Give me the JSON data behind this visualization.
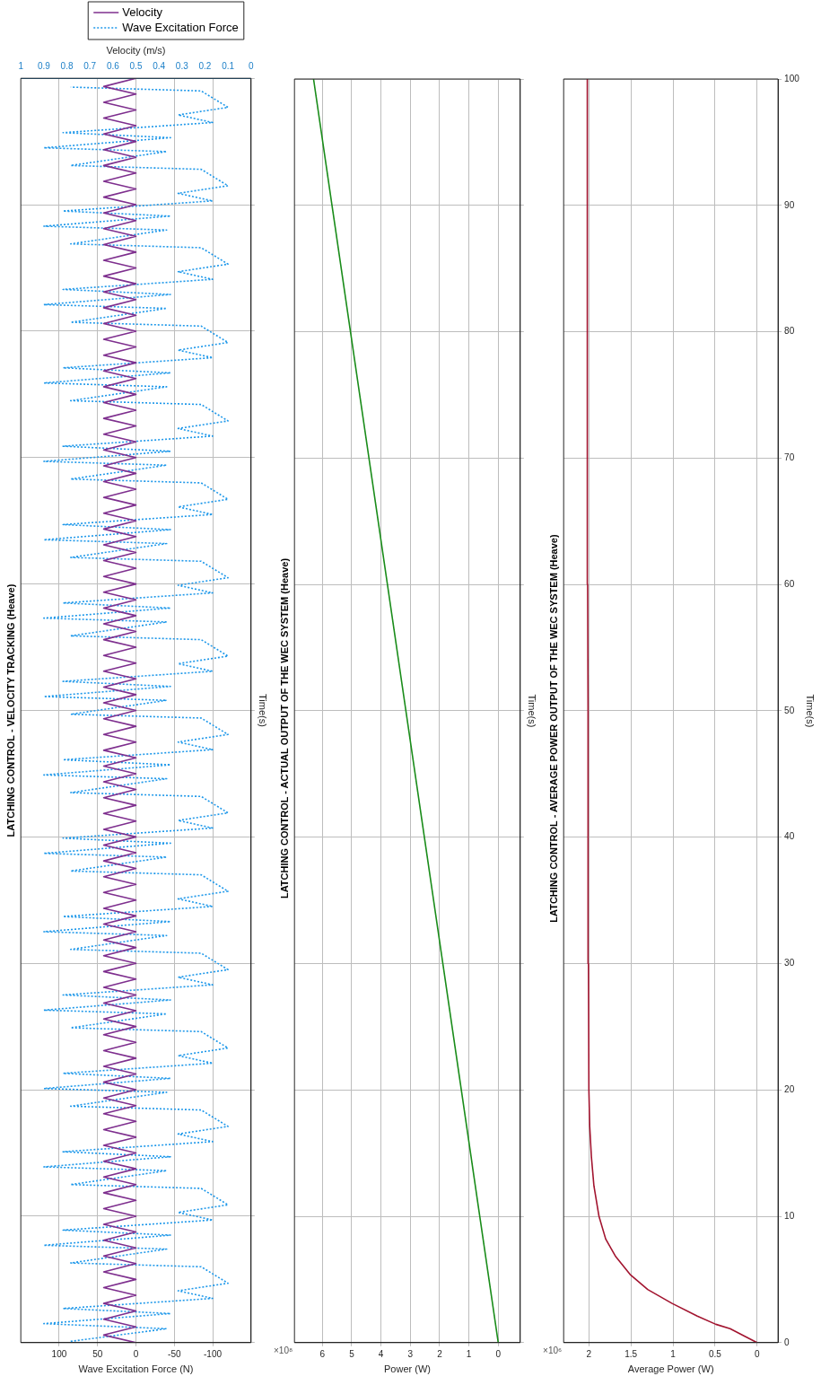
{
  "chart_data": [
    {
      "type": "line",
      "title": "LATCHING CONTROL - VELOCITY TRACKING (Heave)",
      "xlabel": "Wave Excitation Force (N)",
      "x2label": "Velocity (m/s)",
      "ylabel": "Time(s)",
      "ylim": [
        0,
        100
      ],
      "yticks": [
        0,
        10,
        20,
        30,
        40,
        50,
        60,
        70,
        80,
        90,
        100
      ],
      "xlim": [
        150,
        -150
      ],
      "xticks": [
        100,
        50,
        0,
        -50,
        -100
      ],
      "x2lim": [
        1,
        0
      ],
      "x2ticks": [
        1,
        0.9,
        0.8,
        0.7,
        0.6,
        0.5,
        0.4,
        0.3,
        0.2,
        0.1,
        0
      ],
      "grid": true,
      "legend": "top right",
      "tick_labels": "x",
      "marker": "none",
      "series": [
        {
          "name": "Velocity",
          "color": "#7e2f8e",
          "axis": "x2",
          "line_style": "solid",
          "values": [
            0,
            0.6,
            1.25,
            1.85,
            2.5,
            3.1,
            3.75,
            4.35,
            5,
            5.6,
            6.25,
            6.85,
            7.5,
            8.1,
            8.75,
            9.35,
            10,
            10.6,
            11.25,
            11.85,
            12.5,
            13.1,
            13.75,
            14.35,
            15,
            15.6,
            16.25,
            16.85,
            17.5,
            18.1,
            18.75,
            19.35,
            20,
            20.6,
            21.25,
            21.85,
            22.5,
            23.1,
            23.75,
            24.35,
            25,
            25.6,
            26.25,
            26.85,
            27.5,
            28.1,
            28.75,
            29.35,
            30,
            30.6,
            31.25,
            31.85,
            32.5,
            33.1,
            33.75,
            34.35,
            35,
            35.6,
            36.25,
            36.85,
            37.5,
            38.1,
            38.75,
            39.35,
            40,
            40.6,
            41.25,
            41.85,
            42.5,
            43.1,
            43.75,
            44.35,
            45,
            45.6,
            46.25,
            46.85,
            47.5,
            48.1,
            48.75,
            49.35,
            50,
            50.6,
            51.25,
            51.85,
            52.5,
            53.1,
            53.75,
            54.35,
            55,
            55.6,
            56.25,
            56.85,
            57.5,
            58.1,
            58.75,
            59.35,
            60,
            60.6,
            61.25,
            61.85,
            62.5,
            63.1,
            63.75,
            64.35,
            65,
            65.6,
            66.25,
            66.85,
            67.5,
            68.1,
            68.75,
            69.35,
            70,
            70.6,
            71.25,
            71.85,
            72.5,
            73.1,
            73.75,
            74.35,
            75,
            75.6,
            76.25,
            76.85,
            77.5,
            78.1,
            78.75,
            79.35,
            80,
            80.6,
            81.25,
            81.85,
            82.5,
            83.1,
            83.75,
            84.35,
            85,
            85.6,
            86.25,
            86.85,
            87.5,
            88.1,
            88.75,
            89.35,
            90,
            90.6,
            91.25,
            91.85,
            92.5,
            93.1,
            93.75,
            94.35,
            95,
            95.6,
            96.25,
            96.85,
            97.5,
            98.1,
            98.75,
            99.35,
            100
          ],
          "x": [
            0.5,
            0.64,
            0.5,
            0.64,
            0.5,
            0.64,
            0.5,
            0.64,
            0.5,
            0.64,
            0.5,
            0.64,
            0.5,
            0.64,
            0.5,
            0.64,
            0.5,
            0.64,
            0.5,
            0.64,
            0.5,
            0.64,
            0.5,
            0.64,
            0.5,
            0.64,
            0.5,
            0.64,
            0.5,
            0.64,
            0.5,
            0.64,
            0.5,
            0.64,
            0.5,
            0.64,
            0.5,
            0.64,
            0.5,
            0.64,
            0.5,
            0.64,
            0.5,
            0.64,
            0.5,
            0.64,
            0.5,
            0.64,
            0.5,
            0.64,
            0.5,
            0.64,
            0.5,
            0.64,
            0.5,
            0.64,
            0.5,
            0.64,
            0.5,
            0.64,
            0.5,
            0.64,
            0.5,
            0.64,
            0.5,
            0.64,
            0.5,
            0.64,
            0.5,
            0.64,
            0.5,
            0.64,
            0.5,
            0.64,
            0.5,
            0.64,
            0.5,
            0.64,
            0.5,
            0.64,
            0.5,
            0.64,
            0.5,
            0.64,
            0.5,
            0.64,
            0.5,
            0.64,
            0.5,
            0.64,
            0.5,
            0.64,
            0.5,
            0.64,
            0.5,
            0.64,
            0.5,
            0.64,
            0.5,
            0.64,
            0.5,
            0.64,
            0.5,
            0.64,
            0.5,
            0.64,
            0.5,
            0.64,
            0.5,
            0.64,
            0.5,
            0.64,
            0.5,
            0.64,
            0.5,
            0.64,
            0.5,
            0.64,
            0.5,
            0.64,
            0.5,
            0.64,
            0.5,
            0.64,
            0.5,
            0.64,
            0.5,
            0.64,
            0.5,
            0.64,
            0.5,
            0.64,
            0.5,
            0.64,
            0.5,
            0.64,
            0.5,
            0.64,
            0.5,
            0.64,
            0.5,
            0.64,
            0.5,
            0.64,
            0.5,
            0.64,
            0.5,
            0.64,
            0.5,
            0.64,
            0.5,
            0.64,
            0.5,
            0.64,
            0.5,
            0.64,
            0.5,
            0.64,
            0.5,
            0.64,
            0.5
          ]
        },
        {
          "name": "Wave Excitation Force",
          "color": "#1e98ea",
          "line_style": "dotted",
          "values": [
            0.1,
            1.1,
            1.5,
            2.3,
            2.7,
            3.5,
            4.1,
            4.7,
            6.0,
            6.3,
            7.4,
            7.7,
            8.5,
            8.9,
            9.7,
            10.3,
            10.9,
            12.2,
            12.5,
            13.6,
            13.9,
            14.7,
            15.1,
            15.9,
            16.5,
            17.1,
            18.4,
            18.7,
            19.8,
            20.1,
            20.9,
            21.3,
            22.1,
            22.7,
            23.3,
            24.6,
            24.9,
            26.0,
            26.3,
            27.1,
            27.5,
            28.3,
            28.9,
            29.5,
            30.8,
            31.1,
            32.2,
            32.5,
            33.3,
            33.7,
            34.5,
            35.1,
            35.7,
            37.0,
            37.3,
            38.4,
            38.7,
            39.5,
            39.9,
            40.7,
            41.3,
            41.9,
            43.2,
            43.5,
            44.6,
            44.9,
            45.7,
            46.1,
            46.9,
            47.5,
            48.1,
            49.4,
            49.7,
            50.8,
            51.1,
            51.9,
            52.3,
            53.1,
            53.7,
            54.3,
            55.6,
            55.9,
            57.0,
            57.3,
            58.1,
            58.5,
            59.3,
            59.9,
            60.5,
            61.8,
            62.1,
            63.2,
            63.5,
            64.3,
            64.7,
            65.5,
            66.1,
            66.7,
            68.0,
            68.3,
            69.4,
            69.7,
            70.5,
            70.9,
            71.7,
            72.3,
            72.9,
            74.2,
            74.5,
            75.6,
            75.9,
            76.7,
            77.1,
            77.9,
            78.5,
            79.1,
            80.4,
            80.7,
            81.8,
            82.1,
            82.9,
            83.3,
            84.1,
            84.7,
            85.3,
            86.6,
            86.9,
            88.0,
            88.3,
            89.1,
            89.5,
            90.3,
            90.9,
            91.5,
            92.8,
            93.1,
            94.2,
            94.5,
            95.3,
            95.7,
            96.5,
            97.1,
            97.7,
            99.0,
            99.3
          ],
          "x": [
            85,
            -40,
            120,
            -45,
            95,
            -100,
            -55,
            -120,
            -85,
            85,
            -40,
            120,
            -45,
            95,
            -100,
            -55,
            -120,
            -85,
            85,
            -40,
            120,
            -45,
            95,
            -100,
            -55,
            -120,
            -85,
            85,
            -40,
            120,
            -45,
            95,
            -100,
            -55,
            -120,
            -85,
            85,
            -40,
            120,
            -45,
            95,
            -100,
            -55,
            -120,
            -85,
            85,
            -40,
            120,
            -45,
            95,
            -100,
            -55,
            -120,
            -85,
            85,
            -40,
            120,
            -45,
            95,
            -100,
            -55,
            -120,
            -85,
            85,
            -40,
            120,
            -45,
            95,
            -100,
            -55,
            -120,
            -85,
            85,
            -40,
            120,
            -45,
            95,
            -100,
            -55,
            -120,
            -85,
            85,
            -40,
            120,
            -45,
            95,
            -100,
            -55,
            -120,
            -85,
            85,
            -40,
            120,
            -45,
            95,
            -100,
            -55,
            -120,
            -85,
            85,
            -40,
            120,
            -45,
            95,
            -100,
            -55,
            -120,
            -85,
            85,
            -40,
            120,
            -45,
            95,
            -100,
            -55,
            -120,
            -85,
            85,
            -40,
            120,
            -45,
            95,
            -100,
            -55,
            -120,
            -85,
            85,
            -40,
            120,
            -45,
            95,
            -100,
            -55,
            -120,
            -85,
            85,
            -40,
            120,
            -45,
            95,
            -100,
            -55,
            -120,
            -85,
            85
          ]
        }
      ]
    },
    {
      "type": "line",
      "title": "LATCHING CONTROL - ACTUAL OUTPUT OF THE WEC SYSTEM (Heave)",
      "xlabel": "Power (W)",
      "ylabel": "Time(s)",
      "annotations": [
        "×10⁸"
      ],
      "ylim": [
        0,
        100
      ],
      "yticks": [
        0,
        10,
        20,
        30,
        40,
        50,
        60,
        70,
        80,
        90,
        100
      ],
      "xlim": [
        6.95,
        -0.75
      ],
      "xticks": [
        6,
        5,
        4,
        3,
        2,
        1,
        0
      ],
      "grid": true,
      "tick_labels": "x",
      "marker": "none",
      "series": [
        {
          "color": "#1a8c1a",
          "line_style": "solid",
          "values": [
            0,
            10,
            20,
            30,
            40,
            50,
            60,
            70,
            80,
            90,
            100
          ],
          "x": [
            0,
            0.63,
            1.26,
            1.89,
            2.52,
            3.15,
            3.78,
            4.41,
            5.04,
            5.67,
            6.3
          ]
        }
      ]
    },
    {
      "type": "line",
      "title": "LATCHING CONTROL - AVERAGE POWER OUTPUT OF THE WEC SYSTEM (Heave)",
      "xlabel": "Average Power (W)",
      "ylabel": "Time(s)",
      "annotations": [
        "×10⁶"
      ],
      "ylim": [
        0,
        100
      ],
      "yticks": [
        0,
        10,
        20,
        30,
        40,
        50,
        60,
        70,
        80,
        90,
        100
      ],
      "xlim": [
        2.3,
        -0.25
      ],
      "xticks": [
        2,
        1.5,
        1,
        0.5,
        0
      ],
      "grid": true,
      "marker": "none",
      "series": [
        {
          "color": "#a2142f",
          "line_style": "solid",
          "values": [
            0,
            0.5,
            1.1,
            1.45,
            2.1,
            3.1,
            4.2,
            5.4,
            6.8,
            8.2,
            10,
            12.4,
            14.7,
            17.1,
            20,
            30,
            40,
            50,
            60,
            70,
            80,
            90,
            100
          ],
          "x": [
            0,
            0.145,
            0.32,
            0.49,
            0.71,
            1.01,
            1.3,
            1.51,
            1.68,
            1.8,
            1.88,
            1.94,
            1.97,
            1.99,
            2,
            2.005,
            2.01,
            2.01,
            2.015,
            2.015,
            2.02,
            2.02,
            2.02
          ]
        }
      ]
    }
  ]
}
